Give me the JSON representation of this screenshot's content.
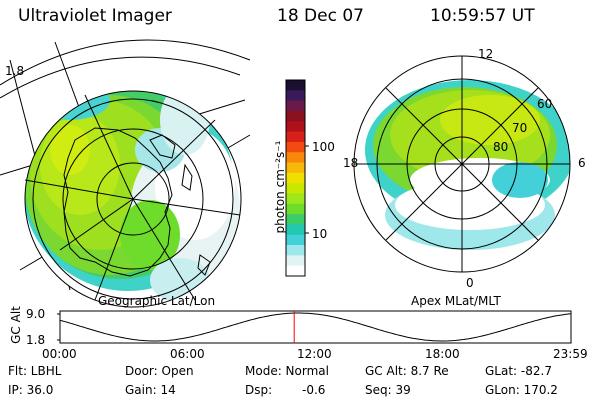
{
  "header": {
    "instrument": "Ultraviolet Imager",
    "date": "18 Dec 07",
    "time": "10:59:57 UT"
  },
  "colorbar": {
    "unit_label": "photon cm⁻²s⁻¹",
    "ticks": [
      "100",
      "10"
    ],
    "colors": [
      "#1a1030",
      "#3b1a5a",
      "#6a1a4a",
      "#8b1020",
      "#b0101a",
      "#d8201a",
      "#f24a10",
      "#f8880a",
      "#f8b808",
      "#f0e000",
      "#c8e800",
      "#9ce81a",
      "#6edc2a",
      "#3ccc68",
      "#22c8b0",
      "#44d0d8",
      "#9ee8ec",
      "#e0f4f4",
      "#ffffff"
    ]
  },
  "geo_panel": {
    "caption": "Geographic Lat/Lon"
  },
  "apex_panel": {
    "caption": "Apex MLat/MLT",
    "mlt_labels": {
      "top": "12",
      "left": "18",
      "right": "6",
      "bottom": "0"
    },
    "mlat_labels": [
      "60",
      "70",
      "80"
    ]
  },
  "timeline": {
    "ylabel": "GC Alt",
    "y_ticks": [
      "9.0",
      "1.8"
    ],
    "x_ticks": [
      "00:00",
      "06:00",
      "12:00",
      "18:00",
      "23:59"
    ],
    "current_time_hours": 11.0,
    "marker_color": "#ff0000"
  },
  "info": {
    "flt": "Flt: LBHL",
    "ip": "IP: 36.0",
    "door": "Door: Open",
    "gain": "Gain: 14",
    "mode": "Mode: Normal",
    "dsp_label": "Dsp:",
    "dsp_value": "-0.6",
    "gcalt": "GC Alt: 8.7 Re",
    "seq": "Seq: 39",
    "glat": "GLat: -82.7",
    "glon": "GLon: 170.2"
  }
}
